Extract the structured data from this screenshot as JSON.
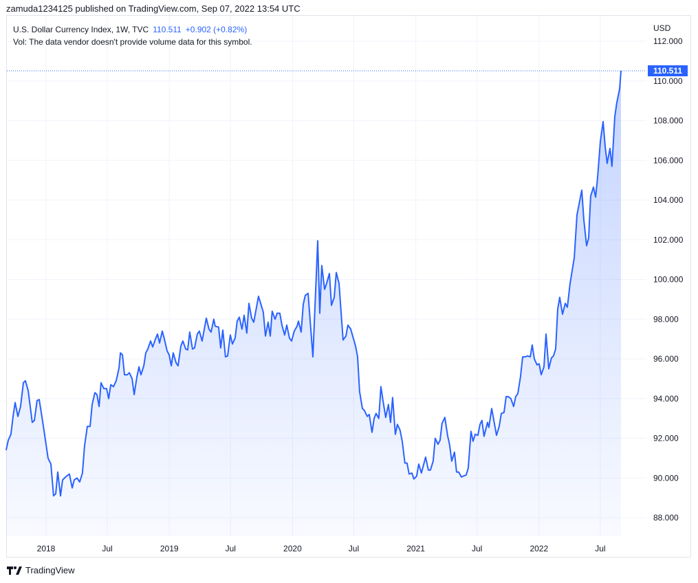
{
  "header": {
    "published": "zamuda1234125 published on TradingView.com, Sep 07, 2022 13:54 UTC"
  },
  "legend": {
    "symbol": "U.S. Dollar Currency Index, 1W, TVC",
    "last": "110.511",
    "change": "+0.902 (+0.82%)",
    "volume_note": "Vol: The data vendor doesn't provide volume data for this symbol."
  },
  "price_scale": {
    "currency": "USD",
    "last_label": "110.511"
  },
  "footer": {
    "brand": "TradingView"
  },
  "colors": {
    "line": "#2962ff",
    "grid": "#f0f3fa",
    "last_badge": "#2962ff"
  },
  "chart_data": {
    "type": "area",
    "title": "U.S. Dollar Currency Index, 1W, TVC",
    "xlabel": "",
    "ylabel": "USD",
    "ylim": [
      88,
      112
    ],
    "xlim": [
      2017.676,
      2022.665
    ],
    "grid": true,
    "yticks": [
      88,
      90,
      92,
      94,
      96,
      98,
      100,
      102,
      104,
      106,
      108,
      110,
      112
    ],
    "ytick_labels": [
      "88.000",
      "90.000",
      "92.000",
      "94.000",
      "96.000",
      "98.000",
      "100.000",
      "102.000",
      "104.000",
      "106.000",
      "108.000",
      "110.000",
      "112.000"
    ],
    "xticks": [
      2018.0,
      2018.497,
      2019.0,
      2019.497,
      2020.0,
      2020.497,
      2021.0,
      2021.497,
      2022.0,
      2022.497
    ],
    "xtick_labels": [
      "2018",
      "Jul",
      "2019",
      "Jul",
      "2020",
      "Jul",
      "2021",
      "Jul",
      "2022",
      "Jul"
    ],
    "last_value": 110.511,
    "t": [
      2017.676,
      2017.693,
      2017.715,
      2017.732,
      2017.749,
      2017.771,
      2017.793,
      2017.816,
      2017.832,
      2017.855,
      2017.888,
      2017.905,
      2017.927,
      2017.944,
      2017.966,
      2017.988,
      2018.016,
      2018.039,
      2018.061,
      2018.078,
      2018.095,
      2018.117,
      2018.134,
      2018.167,
      2018.189,
      2018.212,
      2018.228,
      2018.251,
      2018.273,
      2018.295,
      2018.312,
      2018.335,
      2018.357,
      2018.374,
      2018.396,
      2018.413,
      2018.43,
      2018.446,
      2018.469,
      2018.491,
      2018.508,
      2018.525,
      2018.547,
      2018.569,
      2018.592,
      2018.603,
      2018.62,
      2018.636,
      2018.659,
      2018.676,
      2018.698,
      2018.715,
      2018.737,
      2018.754,
      2018.77,
      2018.793,
      2018.809,
      2018.826,
      2018.848,
      2018.865,
      2018.888,
      2018.904,
      2018.921,
      2018.943,
      2018.96,
      2018.982,
      2018.999,
      2019.016,
      2019.032,
      2019.055,
      2019.071,
      2019.094,
      2019.11,
      2019.133,
      2019.149,
      2019.166,
      2019.188,
      2019.205,
      2019.227,
      2019.244,
      2019.266,
      2019.3,
      2019.322,
      2019.339,
      2019.361,
      2019.372,
      2019.4,
      2019.417,
      2019.434,
      2019.456,
      2019.473,
      2019.495,
      2019.512,
      2019.534,
      2019.551,
      2019.568,
      2019.59,
      2019.607,
      2019.629,
      2019.646,
      2019.668,
      2019.685,
      2019.724,
      2019.741,
      2019.763,
      2019.78,
      2019.802,
      2019.819,
      2019.835,
      2019.858,
      2019.875,
      2019.897,
      2019.914,
      2019.936,
      2019.953,
      2019.975,
      2019.992,
      2020.014,
      2020.037,
      2020.048,
      2020.07,
      2020.087,
      2020.103,
      2020.126,
      2020.165,
      2020.204,
      2020.221,
      2020.237,
      2020.26,
      2020.276,
      2020.299,
      2020.316,
      2020.338,
      2020.355,
      2020.377,
      2020.41,
      2020.433,
      2020.449,
      2020.472,
      2020.511,
      2020.528,
      2020.544,
      2020.567,
      2020.583,
      2020.606,
      2020.622,
      2020.645,
      2020.662,
      2020.678,
      2020.7,
      2020.717,
      2020.734,
      2020.756,
      2020.778,
      2020.795,
      2020.812,
      2020.834,
      2020.851,
      2020.873,
      2020.89,
      2020.912,
      2020.929,
      2020.946,
      2020.968,
      2020.985,
      2021.007,
      2021.024,
      2021.046,
      2021.08,
      2021.102,
      2021.119,
      2021.141,
      2021.158,
      2021.18,
      2021.197,
      2021.213,
      2021.236,
      2021.258,
      2021.275,
      2021.292,
      2021.314,
      2021.331,
      2021.348,
      2021.37,
      2021.387,
      2021.409,
      2021.426,
      2021.448,
      2021.465,
      2021.482,
      2021.504,
      2021.521,
      2021.537,
      2021.554,
      2021.582,
      2021.593,
      2021.616,
      2021.655,
      2021.677,
      2021.694,
      2021.716,
      2021.733,
      2021.75,
      2021.772,
      2021.794,
      2021.811,
      2021.828,
      2021.85,
      2021.867,
      2021.889,
      2021.906,
      2021.929,
      2021.945,
      2021.962,
      2021.984,
      2022.001,
      2022.018,
      2022.04,
      2022.057,
      2022.079,
      2022.101,
      2022.118,
      2022.135,
      2022.152,
      2022.168,
      2022.191,
      2022.213,
      2022.23,
      2022.252,
      2022.286,
      2022.308,
      2022.347,
      2022.364,
      2022.386,
      2022.403,
      2022.419,
      2022.442,
      2022.459,
      2022.475,
      2022.498,
      2022.52,
      2022.537,
      2022.553,
      2022.576,
      2022.592,
      2022.615,
      2022.631,
      2022.654,
      2022.665
    ],
    "values": [
      91.4,
      91.9,
      92.2,
      93.1,
      93.8,
      93.1,
      93.6,
      94.8,
      94.9,
      94.4,
      92.8,
      92.9,
      93.9,
      93.95,
      93.1,
      92.2,
      91.0,
      90.7,
      89.1,
      89.2,
      90.3,
      89.1,
      89.9,
      90.1,
      90.2,
      89.5,
      89.9,
      90.0,
      89.8,
      90.25,
      91.6,
      92.6,
      92.6,
      93.7,
      94.3,
      94.2,
      93.6,
      94.8,
      94.5,
      94.5,
      94.0,
      94.7,
      94.6,
      94.9,
      95.55,
      96.3,
      96.2,
      95.2,
      95.2,
      95.3,
      95.0,
      94.2,
      95.1,
      95.6,
      95.2,
      95.65,
      96.3,
      96.5,
      96.9,
      96.6,
      97.0,
      97.25,
      96.8,
      97.4,
      97.0,
      96.4,
      96.2,
      95.65,
      96.3,
      95.8,
      95.65,
      96.65,
      96.9,
      96.5,
      96.45,
      97.35,
      96.5,
      96.55,
      97.25,
      97.4,
      96.9,
      98.05,
      97.5,
      97.35,
      98.0,
      97.65,
      97.6,
      96.55,
      97.45,
      96.1,
      96.15,
      97.2,
      96.75,
      97.05,
      97.9,
      98.1,
      97.5,
      98.2,
      97.3,
      98.8,
      98.05,
      97.85,
      99.15,
      98.8,
      98.35,
      97.15,
      97.85,
      97.15,
      98.4,
      98.0,
      98.3,
      98.3,
      97.7,
      97.2,
      97.7,
      97.05,
      96.9,
      97.4,
      97.65,
      97.9,
      97.35,
      98.75,
      99.2,
      99.3,
      96.1,
      101.95,
      98.3,
      100.7,
      99.5,
      99.8,
      100.3,
      98.7,
      99.1,
      100.35,
      99.8,
      96.95,
      97.15,
      97.7,
      97.5,
      96.65,
      96.1,
      94.35,
      93.5,
      93.4,
      93.1,
      93.2,
      92.3,
      93.0,
      93.25,
      93.0,
      94.6,
      93.9,
      93.05,
      93.7,
      92.8,
      94.05,
      92.2,
      92.7,
      92.4,
      91.85,
      90.75,
      90.75,
      90.2,
      90.25,
      89.95,
      90.1,
      90.7,
      90.25,
      91.05,
      90.4,
      90.4,
      90.85,
      92.0,
      91.7,
      91.9,
      92.75,
      93.05,
      92.15,
      91.65,
      90.85,
      91.3,
      90.3,
      90.3,
      90.05,
      90.1,
      90.15,
      90.5,
      92.35,
      91.85,
      92.2,
      92.15,
      92.7,
      92.9,
      92.1,
      92.8,
      92.55,
      93.5,
      92.15,
      92.6,
      93.25,
      93.3,
      94.1,
      94.1,
      94.0,
      93.6,
      94.1,
      94.25,
      95.1,
      96.1,
      96.1,
      96.15,
      96.1,
      96.7,
      96.0,
      95.7,
      95.75,
      95.2,
      95.6,
      97.25,
      95.5,
      96.05,
      96.15,
      96.5,
      98.5,
      99.1,
      98.25,
      98.8,
      98.6,
      99.8,
      101.1,
      103.25,
      104.5,
      103.0,
      101.7,
      102.1,
      104.2,
      104.65,
      104.15,
      105.1,
      106.95,
      107.95,
      106.7,
      105.85,
      106.6,
      105.7,
      108.2,
      108.9,
      109.6,
      110.511
    ]
  }
}
